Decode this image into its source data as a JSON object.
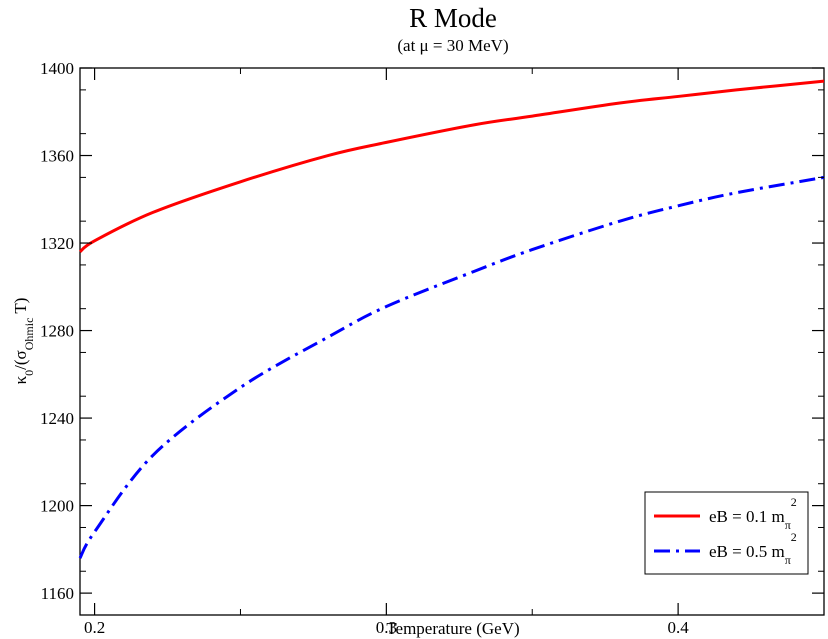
{
  "chart_data": {
    "type": "line",
    "title": "R Mode",
    "subtitle": "(at μ = 30 MeV)",
    "xlabel": "Temperature (GeV)",
    "ylabel": {
      "base": "κ",
      "base_sub": "0",
      "mid": "/(σ",
      "mid_sub": "Ohmic",
      "tail": " T)"
    },
    "xlim": [
      0.195,
      0.45
    ],
    "ylim": [
      1150,
      1400
    ],
    "xticks": [
      0.2,
      0.3,
      0.4
    ],
    "xtick_labels": [
      "0.2",
      "0.3",
      "0.4"
    ],
    "yticks": [
      1160,
      1200,
      1240,
      1280,
      1320,
      1360,
      1400
    ],
    "ytick_labels": [
      "1160",
      "1200",
      "1240",
      "1280",
      "1320",
      "1360",
      "1400"
    ],
    "grid": false,
    "legend_position": "bottom-right",
    "series": [
      {
        "name": {
          "main": "eB = 0.1 m",
          "sub": "π",
          "sup": "2"
        },
        "color": "#ff0000",
        "style": "solid",
        "x": [
          0.195,
          0.2,
          0.22,
          0.25,
          0.28,
          0.3,
          0.33,
          0.35,
          0.38,
          0.4,
          0.42,
          0.45
        ],
        "y": [
          1316,
          1321,
          1334,
          1348,
          1360,
          1366,
          1374,
          1378,
          1384,
          1387,
          1390,
          1394
        ]
      },
      {
        "name": {
          "main": "eB = 0.5 m",
          "sub": "π",
          "sup": "2"
        },
        "color": "#0000ff",
        "style": "dashdot",
        "x": [
          0.195,
          0.2,
          0.22,
          0.25,
          0.28,
          0.3,
          0.33,
          0.35,
          0.38,
          0.4,
          0.42,
          0.45
        ],
        "y": [
          1176,
          1188,
          1223,
          1254,
          1277,
          1291,
          1307,
          1317,
          1330,
          1337,
          1343,
          1350
        ]
      }
    ]
  }
}
